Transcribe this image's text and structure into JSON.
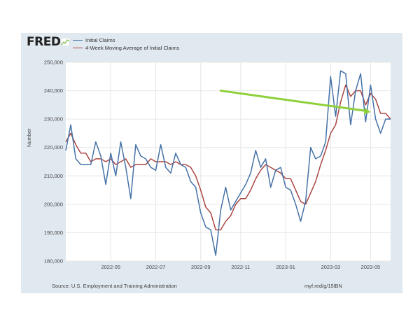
{
  "logo": {
    "text": "FRED",
    "icon": "fred-logo-graph-icon"
  },
  "legend": [
    {
      "label": "Initial Claims",
      "color": "#4572a7"
    },
    {
      "label": "4-Week Moving Average of Initial Claims",
      "color": "#aa4643"
    }
  ],
  "footer": {
    "source": "Source: U.S. Employment and Training Administration",
    "url": "myf.red/g/15lBN"
  },
  "annotation": {
    "type": "trend-arrow",
    "color": "#8dd03a",
    "from_value": [
      31,
      240000
    ],
    "to_value": [
      61,
      232500
    ]
  },
  "chart_data": {
    "type": "line",
    "title": "",
    "xlabel": "",
    "ylabel": "Number",
    "ylim": [
      180000,
      250000
    ],
    "y_ticks": [
      "180,000",
      "190,000",
      "200,000",
      "210,000",
      "220,000",
      "230,000",
      "240,000",
      "250,000"
    ],
    "y_tick_values": [
      180000,
      190000,
      200000,
      210000,
      220000,
      230000,
      240000,
      250000
    ],
    "x_ticks": [
      "2022-05",
      "2022-07",
      "2022-09",
      "2022-11",
      "2023-01",
      "2023-03",
      "2023-05"
    ],
    "x_tick_positions": [
      9,
      18,
      27,
      35,
      44,
      53,
      61
    ],
    "grid": true,
    "legend_position": "top-left",
    "series": [
      {
        "name": "Initial Claims",
        "color": "#4572a7",
        "values": [
          219000,
          228000,
          216000,
          214000,
          214000,
          214000,
          222000,
          217000,
          207000,
          218000,
          210000,
          222000,
          213000,
          202000,
          221000,
          217000,
          216000,
          213000,
          212000,
          221000,
          213000,
          211000,
          218000,
          214000,
          213000,
          208000,
          206000,
          197000,
          192000,
          191000,
          182000,
          198000,
          206000,
          198000,
          201000,
          204000,
          207000,
          211000,
          219000,
          213000,
          216000,
          206000,
          212000,
          213000,
          206000,
          205000,
          200000,
          194000,
          201000,
          220000,
          216000,
          217000,
          222000,
          245000,
          231000,
          247000,
          246000,
          228000,
          240000,
          246000,
          229000,
          242000,
          230000,
          225000,
          230000,
          230000
        ]
      },
      {
        "name": "4-Week Moving Average of Initial Claims",
        "color": "#aa4643",
        "values": [
          222000,
          225000,
          221000,
          218000,
          218000,
          215000,
          216000,
          216000,
          215000,
          216000,
          214000,
          215000,
          216000,
          213000,
          214000,
          214000,
          214000,
          216000,
          215000,
          215000,
          215000,
          214000,
          215000,
          214000,
          214000,
          213000,
          210000,
          205000,
          199000,
          197000,
          191000,
          191000,
          194000,
          196000,
          200000,
          202000,
          202000,
          205000,
          209000,
          212000,
          214000,
          213000,
          212000,
          211000,
          209000,
          209000,
          205000,
          201000,
          200000,
          204000,
          208000,
          214000,
          219000,
          225000,
          228000,
          236000,
          242000,
          238000,
          240000,
          240000,
          235000,
          239000,
          237000,
          232000,
          232000,
          230000
        ]
      }
    ]
  }
}
